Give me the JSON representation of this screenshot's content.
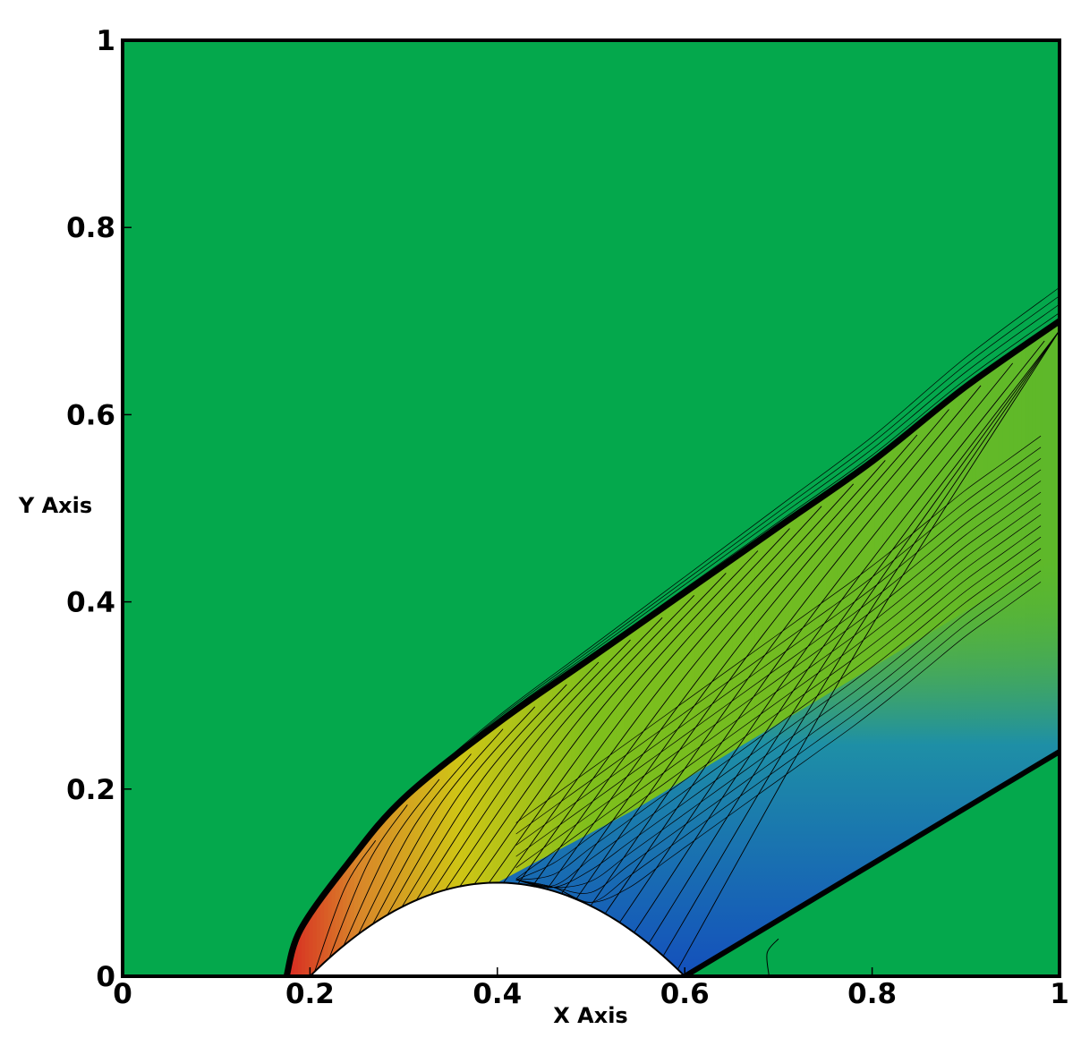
{
  "chart_data": {
    "type": "heatmap",
    "subtype": "filled-contour",
    "xlabel": "X Axis",
    "ylabel": "Y Axis",
    "xlim": [
      0,
      1
    ],
    "ylim": [
      0,
      1
    ],
    "xticks": [
      0,
      0.2,
      0.4,
      0.6,
      0.8,
      1
    ],
    "xtick_labels": [
      "0",
      "0.2",
      "0.4",
      "0.6",
      "0.8",
      "1"
    ],
    "yticks": [
      0,
      0.2,
      0.4,
      0.6,
      0.8,
      1
    ],
    "ytick_labels": [
      "0",
      "0.2",
      "0.4",
      "0.6",
      "0.8",
      "1"
    ],
    "grid": false,
    "legend": "none",
    "colors": {
      "freestream": "#04a84c",
      "stagnation": "#d82a22",
      "post_shock": "#cfc515",
      "expansion": "#1450bc",
      "contour_line": "#000000",
      "obstacle": "#ffffff"
    },
    "obstacle": {
      "shape": "circular-arc bump",
      "x_start": 0.2,
      "x_end": 0.6,
      "peak": [
        0.4,
        0.1
      ]
    },
    "bow_shock": [
      [
        0.175,
        0.0
      ],
      [
        0.19,
        0.05
      ],
      [
        0.24,
        0.12
      ],
      [
        0.3,
        0.19
      ],
      [
        0.4,
        0.27
      ],
      [
        0.5,
        0.34
      ],
      [
        0.6,
        0.41
      ],
      [
        0.7,
        0.48
      ],
      [
        0.8,
        0.55
      ],
      [
        0.9,
        0.63
      ],
      [
        1.0,
        0.7
      ]
    ],
    "tail_shock": [
      [
        0.6,
        0.0
      ],
      [
        0.7,
        0.06
      ],
      [
        0.8,
        0.12
      ],
      [
        0.9,
        0.18
      ],
      [
        1.0,
        0.24
      ]
    ]
  }
}
